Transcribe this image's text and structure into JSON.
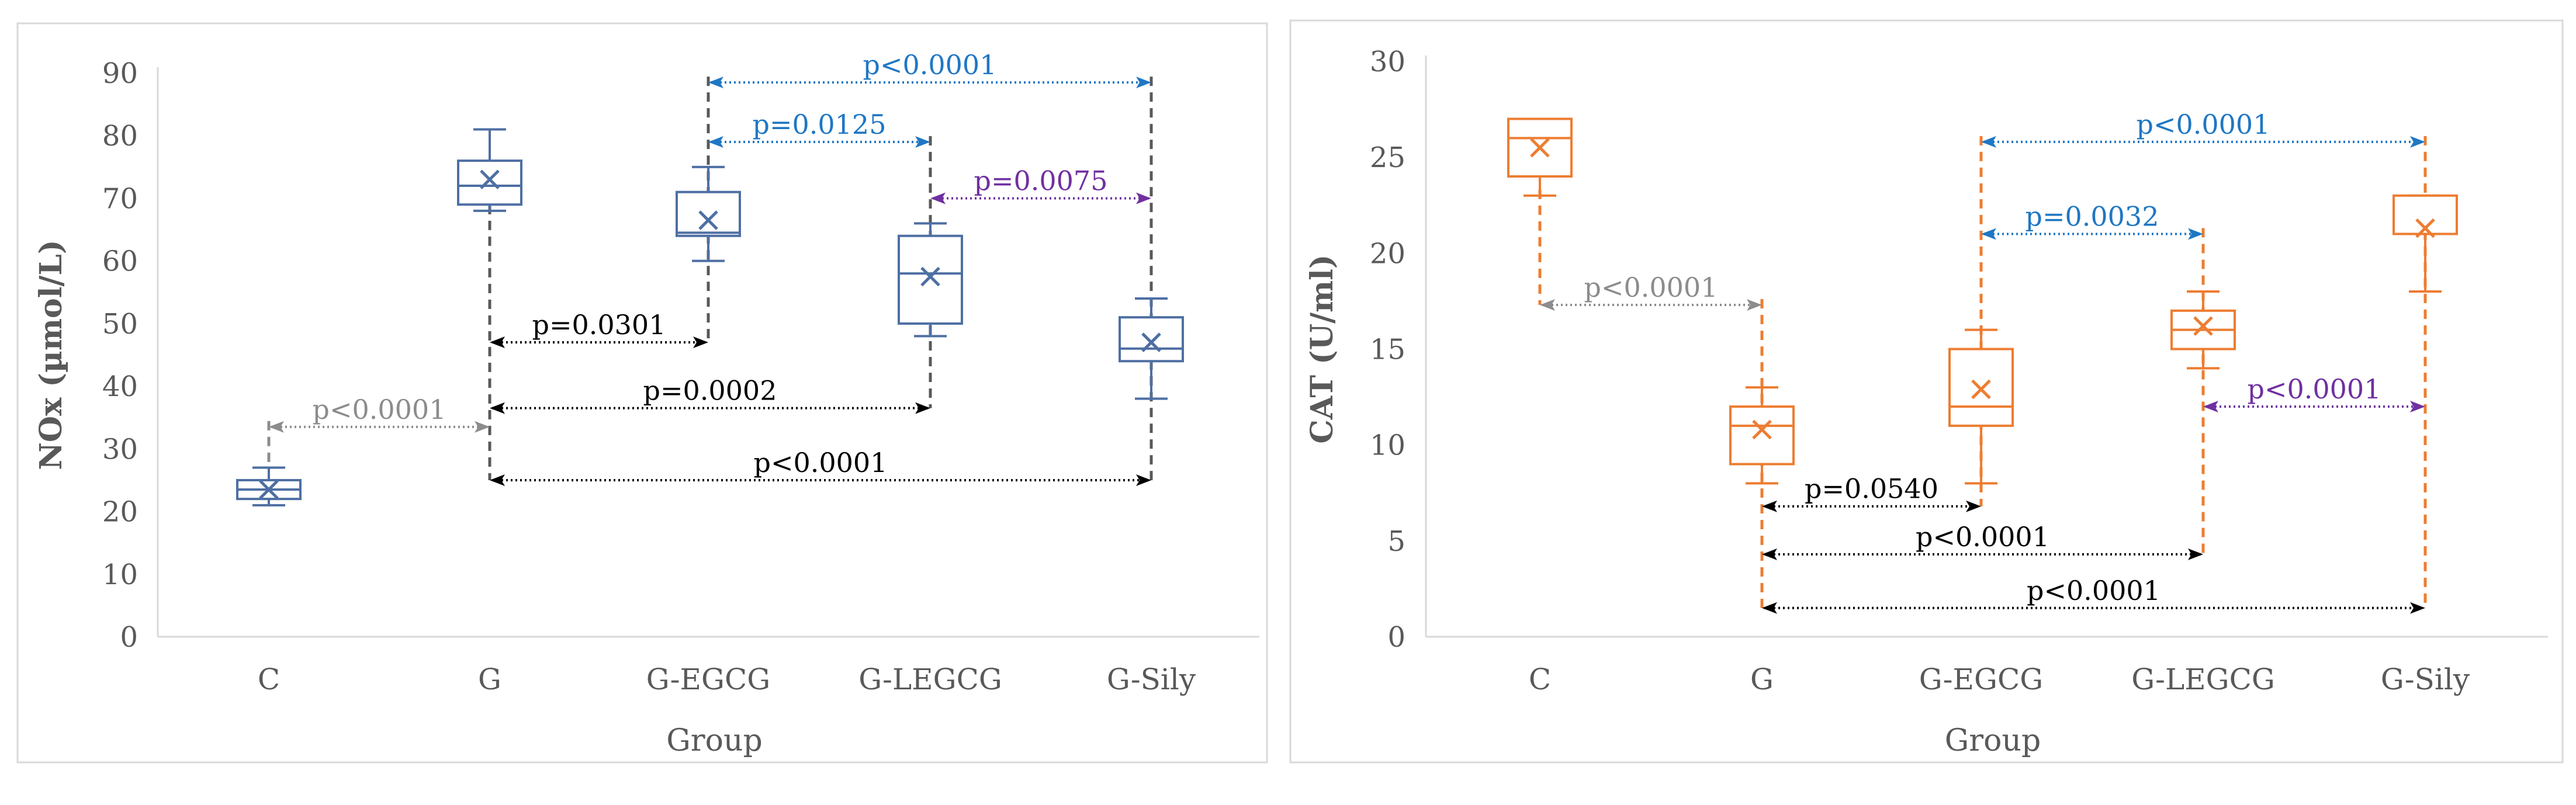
{
  "chart_data": [
    {
      "type": "box",
      "title": "",
      "xlabel": "Group",
      "ylabel": "NOx (µmol/L)",
      "ylim": [
        0,
        90
      ],
      "yticks": [
        0,
        10,
        20,
        30,
        40,
        50,
        60,
        70,
        80,
        90
      ],
      "categories": [
        "C",
        "G",
        "G-EGCG",
        "G-LEGCG",
        "G-Sily"
      ],
      "color": "#4E6FA3",
      "boxes": [
        {
          "category": "C",
          "min": 21,
          "q1": 22,
          "median": 23.5,
          "q3": 25,
          "max": 27,
          "mean": 23.5
        },
        {
          "category": "G",
          "min": 68,
          "q1": 69,
          "median": 72,
          "q3": 76,
          "max": 81,
          "mean": 73
        },
        {
          "category": "G-EGCG",
          "min": 60,
          "q1": 64,
          "median": 64.5,
          "q3": 71,
          "max": 75,
          "mean": 66.5
        },
        {
          "category": "G-LEGCG",
          "min": 48,
          "q1": 50,
          "median": 58,
          "q3": 64,
          "max": 66,
          "mean": 57.5
        },
        {
          "category": "G-Sily",
          "min": 38,
          "q1": 44,
          "median": 46,
          "q3": 51,
          "max": 54,
          "mean": 47
        }
      ],
      "comparisons": [
        {
          "from": "C",
          "to": "G",
          "label": "p<0.0001",
          "y": 33.5,
          "color": "#8C8C8C"
        },
        {
          "from": "G",
          "to": "G-EGCG",
          "label": "p=0.0301",
          "y": 47,
          "color": "#000000"
        },
        {
          "from": "G",
          "to": "G-LEGCG",
          "label": "p=0.0002",
          "y": 36.5,
          "color": "#000000"
        },
        {
          "from": "G",
          "to": "G-Sily",
          "label": "p<0.0001",
          "y": 25,
          "color": "#000000"
        },
        {
          "from": "G-EGCG",
          "to": "G-LEGCG",
          "label": "p=0.0125",
          "y": 79,
          "color": "#1F77C4"
        },
        {
          "from": "G-EGCG",
          "to": "G-Sily",
          "label": "p<0.0001",
          "y": 88.5,
          "color": "#1F77C4"
        },
        {
          "from": "G-LEGCG",
          "to": "G-Sily",
          "label": "p=0.0075",
          "y": 70,
          "color": "#7030A0"
        }
      ]
    },
    {
      "type": "box",
      "title": "",
      "xlabel": "Group",
      "ylabel": "CAT (U/ml)",
      "ylim": [
        0,
        30
      ],
      "yticks": [
        0,
        5,
        10,
        15,
        20,
        25,
        30
      ],
      "categories": [
        "C",
        "G",
        "G-EGCG",
        "G-LEGCG",
        "G-Sily"
      ],
      "color": "#ED7D31",
      "boxes": [
        {
          "category": "C",
          "min": 23,
          "q1": 24,
          "median": 26,
          "q3": 27,
          "max": 27,
          "mean": 25.5
        },
        {
          "category": "G",
          "min": 8,
          "q1": 9,
          "median": 11,
          "q3": 12,
          "max": 13,
          "mean": 10.8
        },
        {
          "category": "G-EGCG",
          "min": 8,
          "q1": 11,
          "median": 12,
          "q3": 15,
          "max": 16,
          "mean": 12.9
        },
        {
          "category": "G-LEGCG",
          "min": 14,
          "q1": 15,
          "median": 16,
          "q3": 17,
          "max": 18,
          "mean": 16.2
        },
        {
          "category": "G-Sily",
          "min": 18,
          "q1": 21,
          "median": 21,
          "q3": 23,
          "max": 23,
          "mean": 21.3
        }
      ],
      "comparisons": [
        {
          "from": "C",
          "to": "G",
          "label": "p<0.0001",
          "y": 17.3,
          "color": "#8C8C8C"
        },
        {
          "from": "G",
          "to": "G-EGCG",
          "label": "p=0.0540",
          "y": 6.8,
          "color": "#000000"
        },
        {
          "from": "G",
          "to": "G-LEGCG",
          "label": "p<0.0001",
          "y": 4.3,
          "color": "#000000"
        },
        {
          "from": "G",
          "to": "G-Sily",
          "label": "p<0.0001",
          "y": 1.5,
          "color": "#000000"
        },
        {
          "from": "G-EGCG",
          "to": "G-LEGCG",
          "label": "p=0.0032",
          "y": 21,
          "color": "#1F77C4"
        },
        {
          "from": "G-EGCG",
          "to": "G-Sily",
          "label": "p<0.0001",
          "y": 25.8,
          "color": "#1F77C4"
        },
        {
          "from": "G-LEGCG",
          "to": "G-Sily",
          "label": "p<0.0001",
          "y": 12,
          "color": "#7030A0"
        }
      ]
    }
  ]
}
